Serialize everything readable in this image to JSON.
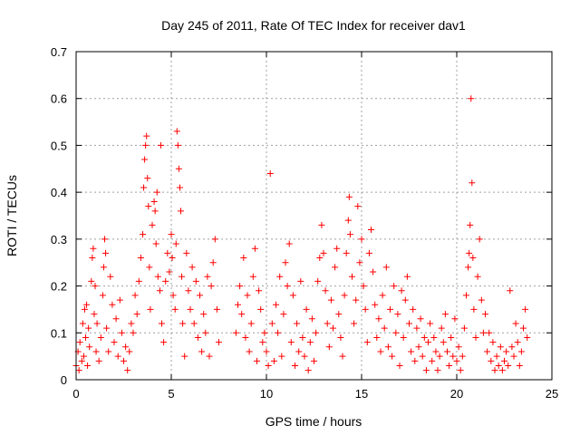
{
  "chart_data": {
    "type": "scatter",
    "title": "Day 245 of 2011, Rate Of TEC Index for receiver dav1",
    "xlabel": "GPS time / hours",
    "ylabel": "ROTI / TECUs",
    "xlim": [
      0,
      25
    ],
    "ylim": [
      0,
      0.7
    ],
    "x_ticks": [
      0,
      5,
      10,
      15,
      20,
      25
    ],
    "y_ticks": [
      0,
      0.1,
      0.2,
      0.3,
      0.4,
      0.5,
      0.6,
      0.7
    ],
    "x_tick_labels": [
      "0",
      "5",
      "10",
      "15",
      "20",
      "25"
    ],
    "y_tick_labels": [
      "0",
      "0.1",
      "0.2",
      "0.3",
      "0.4",
      "0.5",
      "0.6",
      "0.7"
    ],
    "grid": true,
    "marker": "+",
    "color": "#ff0000",
    "series": [
      {
        "marker": "+",
        "points": [
          [
            0.0,
            0.03
          ],
          [
            0.1,
            0.06
          ],
          [
            0.15,
            0.02
          ],
          [
            0.2,
            0.08
          ],
          [
            0.3,
            0.04
          ],
          [
            0.35,
            0.12
          ],
          [
            0.4,
            0.05
          ],
          [
            0.45,
            0.15
          ],
          [
            0.5,
            0.09
          ],
          [
            0.55,
            0.16
          ],
          [
            0.6,
            0.03
          ],
          [
            0.65,
            0.11
          ],
          [
            0.7,
            0.07
          ],
          [
            0.8,
            0.21
          ],
          [
            0.85,
            0.26
          ],
          [
            0.9,
            0.28
          ],
          [
            0.95,
            0.14
          ],
          [
            1.0,
            0.2
          ],
          [
            1.05,
            0.06
          ],
          [
            1.1,
            0.12
          ],
          [
            1.2,
            0.04
          ],
          [
            1.3,
            0.09
          ],
          [
            1.4,
            0.18
          ],
          [
            1.45,
            0.24
          ],
          [
            1.5,
            0.3
          ],
          [
            1.55,
            0.27
          ],
          [
            1.6,
            0.11
          ],
          [
            1.7,
            0.06
          ],
          [
            1.8,
            0.22
          ],
          [
            1.9,
            0.16
          ],
          [
            2.0,
            0.08
          ],
          [
            2.1,
            0.13
          ],
          [
            2.2,
            0.05
          ],
          [
            2.3,
            0.17
          ],
          [
            2.4,
            0.1
          ],
          [
            2.5,
            0.04
          ],
          [
            2.6,
            0.07
          ],
          [
            2.7,
            0.02
          ],
          [
            2.8,
            0.06
          ],
          [
            2.9,
            0.12
          ],
          [
            3.0,
            0.1
          ],
          [
            3.1,
            0.18
          ],
          [
            3.2,
            0.14
          ],
          [
            3.3,
            0.21
          ],
          [
            3.4,
            0.26
          ],
          [
            3.5,
            0.31
          ],
          [
            3.55,
            0.41
          ],
          [
            3.6,
            0.47
          ],
          [
            3.65,
            0.5
          ],
          [
            3.7,
            0.52
          ],
          [
            3.75,
            0.43
          ],
          [
            3.8,
            0.37
          ],
          [
            3.85,
            0.24
          ],
          [
            3.9,
            0.15
          ],
          [
            4.0,
            0.33
          ],
          [
            4.1,
            0.38
          ],
          [
            4.15,
            0.36
          ],
          [
            4.2,
            0.29
          ],
          [
            4.25,
            0.4
          ],
          [
            4.3,
            0.22
          ],
          [
            4.4,
            0.19
          ],
          [
            4.45,
            0.5
          ],
          [
            4.5,
            0.12
          ],
          [
            4.6,
            0.08
          ],
          [
            4.7,
            0.21
          ],
          [
            4.8,
            0.27
          ],
          [
            4.9,
            0.23
          ],
          [
            5.0,
            0.31
          ],
          [
            5.05,
            0.26
          ],
          [
            5.1,
            0.18
          ],
          [
            5.2,
            0.15
          ],
          [
            5.25,
            0.29
          ],
          [
            5.3,
            0.53
          ],
          [
            5.35,
            0.5
          ],
          [
            5.4,
            0.45
          ],
          [
            5.45,
            0.41
          ],
          [
            5.5,
            0.36
          ],
          [
            5.55,
            0.22
          ],
          [
            5.6,
            0.12
          ],
          [
            5.7,
            0.05
          ],
          [
            5.8,
            0.27
          ],
          [
            5.9,
            0.19
          ],
          [
            6.0,
            0.15
          ],
          [
            6.1,
            0.24
          ],
          [
            6.2,
            0.12
          ],
          [
            6.3,
            0.21
          ],
          [
            6.4,
            0.09
          ],
          [
            6.5,
            0.18
          ],
          [
            6.6,
            0.06
          ],
          [
            6.7,
            0.14
          ],
          [
            6.8,
            0.1
          ],
          [
            6.9,
            0.22
          ],
          [
            7.0,
            0.05
          ],
          [
            7.1,
            0.2
          ],
          [
            7.2,
            0.25
          ],
          [
            7.3,
            0.3
          ],
          [
            7.4,
            0.15
          ],
          [
            7.5,
            0.08
          ],
          [
            8.4,
            0.1
          ],
          [
            8.5,
            0.16
          ],
          [
            8.6,
            0.2
          ],
          [
            8.7,
            0.14
          ],
          [
            8.8,
            0.26
          ],
          [
            8.9,
            0.09
          ],
          [
            9.0,
            0.18
          ],
          [
            9.1,
            0.06
          ],
          [
            9.2,
            0.12
          ],
          [
            9.3,
            0.22
          ],
          [
            9.4,
            0.28
          ],
          [
            9.5,
            0.04
          ],
          [
            9.6,
            0.19
          ],
          [
            9.7,
            0.15
          ],
          [
            9.8,
            0.08
          ],
          [
            9.9,
            0.1
          ],
          [
            10.0,
            0.06
          ],
          [
            10.1,
            0.03
          ],
          [
            10.2,
            0.44
          ],
          [
            10.3,
            0.12
          ],
          [
            10.4,
            0.04
          ],
          [
            10.5,
            0.16
          ],
          [
            10.6,
            0.1
          ],
          [
            10.7,
            0.22
          ],
          [
            10.8,
            0.05
          ],
          [
            10.9,
            0.14
          ],
          [
            11.0,
            0.25
          ],
          [
            11.1,
            0.2
          ],
          [
            11.2,
            0.29
          ],
          [
            11.3,
            0.08
          ],
          [
            11.4,
            0.18
          ],
          [
            11.5,
            0.03
          ],
          [
            11.6,
            0.12
          ],
          [
            11.7,
            0.06
          ],
          [
            11.8,
            0.21
          ],
          [
            11.9,
            0.09
          ],
          [
            12.0,
            0.05
          ],
          [
            12.1,
            0.15
          ],
          [
            12.2,
            0.02
          ],
          [
            12.3,
            0.08
          ],
          [
            12.4,
            0.13
          ],
          [
            12.5,
            0.04
          ],
          [
            12.6,
            0.1
          ],
          [
            12.7,
            0.21
          ],
          [
            12.8,
            0.26
          ],
          [
            12.9,
            0.33
          ],
          [
            13.0,
            0.27
          ],
          [
            13.1,
            0.19
          ],
          [
            13.2,
            0.12
          ],
          [
            13.3,
            0.07
          ],
          [
            13.4,
            0.17
          ],
          [
            13.5,
            0.11
          ],
          [
            13.6,
            0.24
          ],
          [
            13.7,
            0.28
          ],
          [
            13.8,
            0.14
          ],
          [
            13.9,
            0.09
          ],
          [
            14.0,
            0.05
          ],
          [
            14.1,
            0.18
          ],
          [
            14.2,
            0.27
          ],
          [
            14.3,
            0.34
          ],
          [
            14.35,
            0.39
          ],
          [
            14.4,
            0.31
          ],
          [
            14.5,
            0.22
          ],
          [
            14.6,
            0.12
          ],
          [
            14.7,
            0.17
          ],
          [
            14.8,
            0.37
          ],
          [
            14.9,
            0.25
          ],
          [
            15.0,
            0.3
          ],
          [
            15.1,
            0.2
          ],
          [
            15.2,
            0.15
          ],
          [
            15.3,
            0.08
          ],
          [
            15.4,
            0.27
          ],
          [
            15.5,
            0.32
          ],
          [
            15.6,
            0.23
          ],
          [
            15.7,
            0.16
          ],
          [
            15.8,
            0.09
          ],
          [
            15.9,
            0.13
          ],
          [
            16.0,
            0.06
          ],
          [
            16.1,
            0.18
          ],
          [
            16.2,
            0.11
          ],
          [
            16.3,
            0.24
          ],
          [
            16.4,
            0.07
          ],
          [
            16.5,
            0.15
          ],
          [
            16.6,
            0.05
          ],
          [
            16.7,
            0.2
          ],
          [
            16.8,
            0.1
          ],
          [
            16.9,
            0.14
          ],
          [
            17.0,
            0.03
          ],
          [
            17.1,
            0.19
          ],
          [
            17.2,
            0.09
          ],
          [
            17.3,
            0.17
          ],
          [
            17.4,
            0.22
          ],
          [
            17.5,
            0.12
          ],
          [
            17.6,
            0.06
          ],
          [
            17.7,
            0.15
          ],
          [
            17.8,
            0.04
          ],
          [
            17.9,
            0.11
          ],
          [
            18.0,
            0.07
          ],
          [
            18.1,
            0.13
          ],
          [
            18.2,
            0.05
          ],
          [
            18.3,
            0.09
          ],
          [
            18.4,
            0.02
          ],
          [
            18.5,
            0.08
          ],
          [
            18.6,
            0.12
          ],
          [
            18.7,
            0.04
          ],
          [
            18.8,
            0.09
          ],
          [
            18.9,
            0.06
          ],
          [
            19.0,
            0.02
          ],
          [
            19.1,
            0.05
          ],
          [
            19.2,
            0.11
          ],
          [
            19.3,
            0.08
          ],
          [
            19.4,
            0.14
          ],
          [
            19.5,
            0.06
          ],
          [
            19.6,
            0.03
          ],
          [
            19.7,
            0.09
          ],
          [
            19.8,
            0.05
          ],
          [
            19.9,
            0.13
          ],
          [
            20.0,
            0.04
          ],
          [
            20.1,
            0.07
          ],
          [
            20.2,
            0.02
          ],
          [
            20.3,
            0.05
          ],
          [
            20.4,
            0.11
          ],
          [
            20.5,
            0.18
          ],
          [
            20.6,
            0.24
          ],
          [
            20.65,
            0.27
          ],
          [
            20.7,
            0.33
          ],
          [
            20.75,
            0.6
          ],
          [
            20.8,
            0.42
          ],
          [
            20.85,
            0.26
          ],
          [
            20.9,
            0.15
          ],
          [
            21.0,
            0.09
          ],
          [
            21.1,
            0.22
          ],
          [
            21.2,
            0.3
          ],
          [
            21.3,
            0.17
          ],
          [
            21.4,
            0.1
          ],
          [
            21.5,
            0.14
          ],
          [
            21.6,
            0.06
          ],
          [
            21.7,
            0.1
          ],
          [
            21.8,
            0.04
          ],
          [
            21.9,
            0.08
          ],
          [
            22.0,
            0.02
          ],
          [
            22.1,
            0.05
          ],
          [
            22.2,
            0.03
          ],
          [
            22.3,
            0.07
          ],
          [
            22.4,
            0.02
          ],
          [
            22.5,
            0.04
          ],
          [
            22.6,
            0.06
          ],
          [
            22.7,
            0.03
          ],
          [
            22.8,
            0.19
          ],
          [
            22.9,
            0.07
          ],
          [
            23.0,
            0.05
          ],
          [
            23.1,
            0.12
          ],
          [
            23.2,
            0.08
          ],
          [
            23.3,
            0.03
          ],
          [
            23.4,
            0.06
          ],
          [
            23.5,
            0.11
          ],
          [
            23.6,
            0.15
          ],
          [
            23.7,
            0.09
          ]
        ]
      }
    ]
  }
}
